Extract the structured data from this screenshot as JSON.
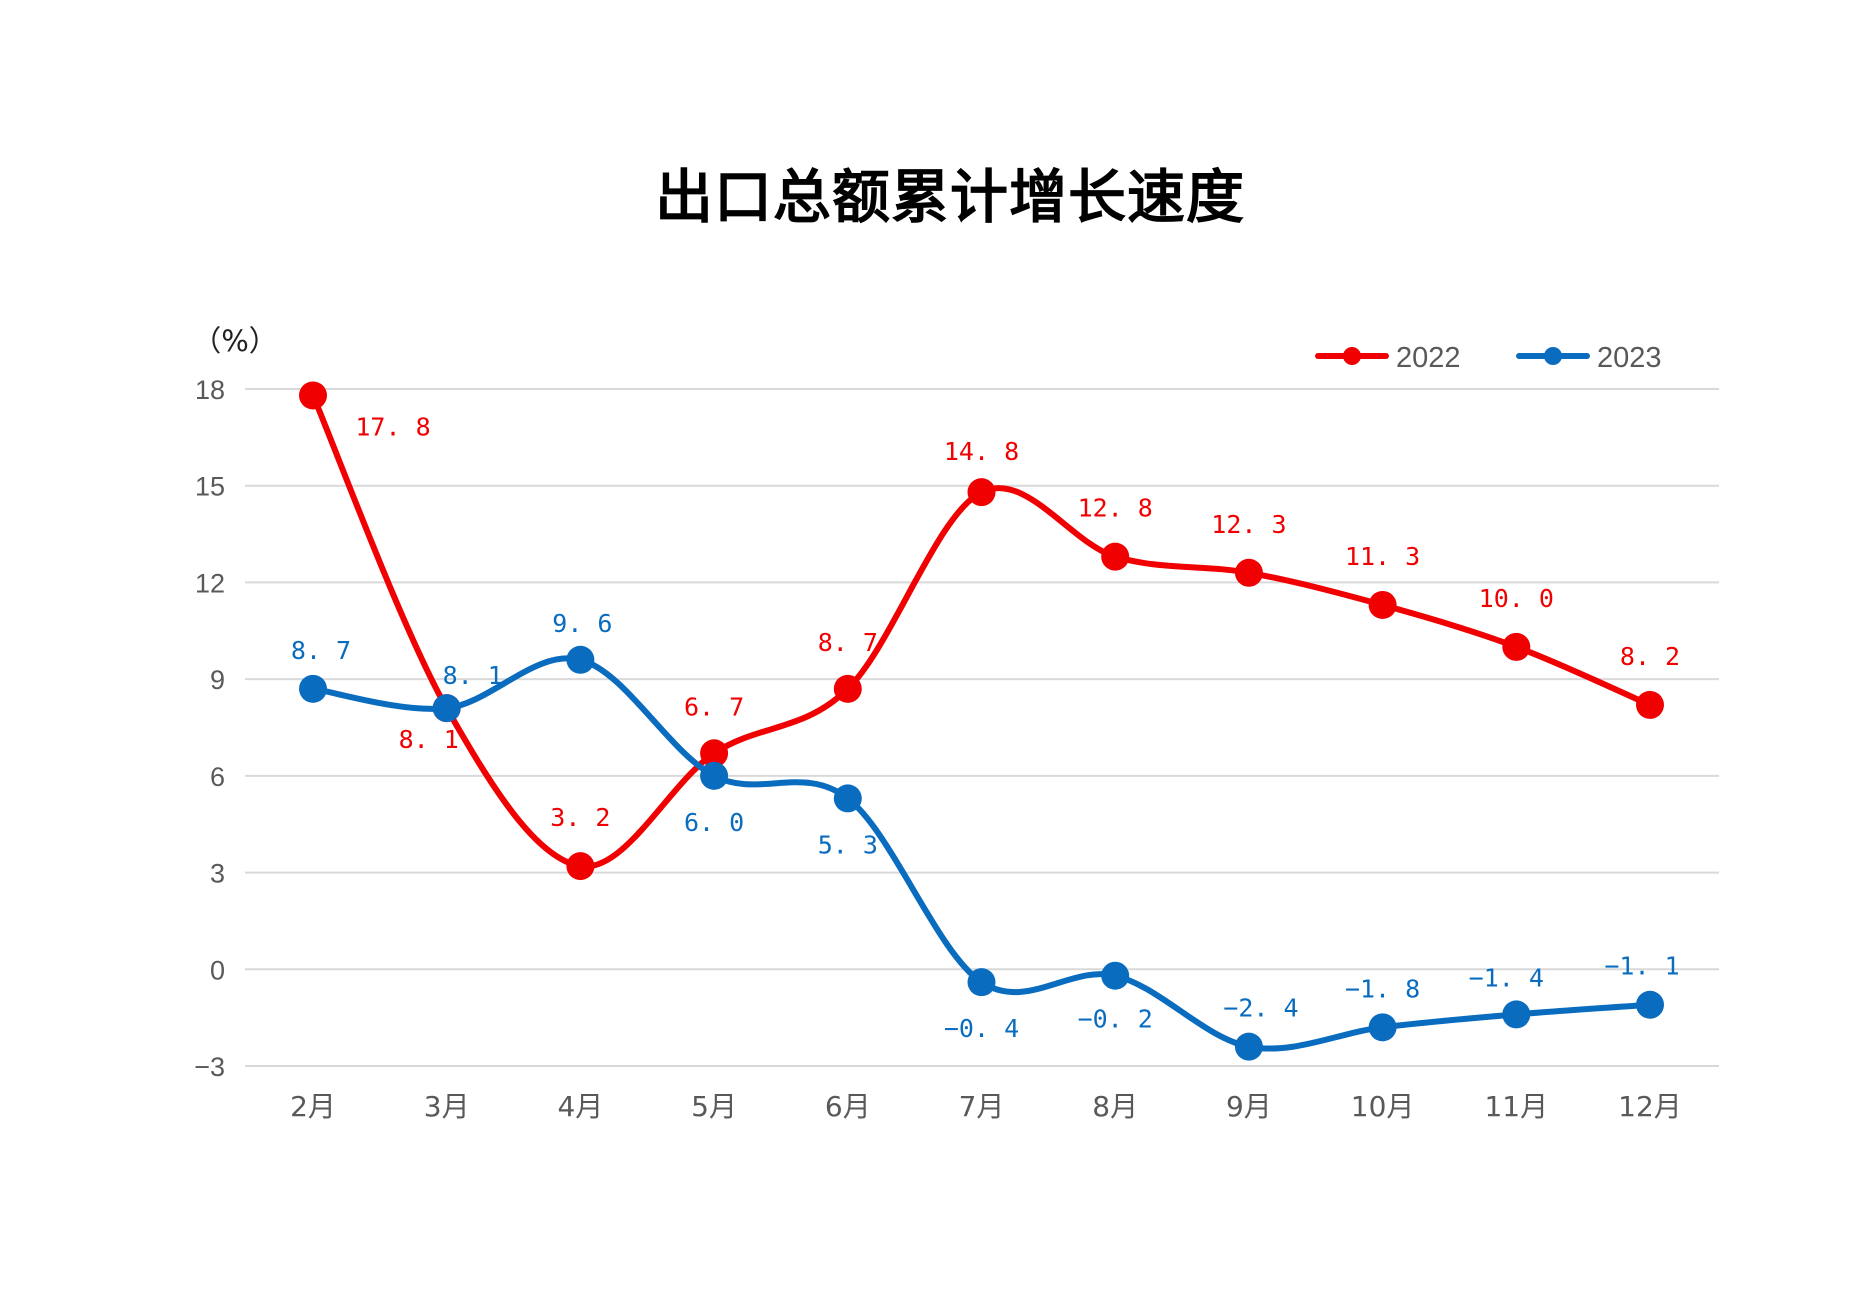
{
  "chart_data": {
    "type": "line",
    "title": "出口总额累计增长速度",
    "ylabel": "（%）",
    "xlabel": "",
    "categories": [
      "2月",
      "3月",
      "4月",
      "5月",
      "6月",
      "7月",
      "8月",
      "9月",
      "10月",
      "11月",
      "12月"
    ],
    "ylim": [
      -3,
      18
    ],
    "yticks": [
      -3,
      0,
      3,
      6,
      9,
      12,
      15,
      18
    ],
    "grid": true,
    "smooth": true,
    "legend_position": "top-right",
    "series": [
      {
        "name": "2022",
        "color": "#f00000",
        "values": [
          17.8,
          8.1,
          3.2,
          6.7,
          8.7,
          14.8,
          12.8,
          12.3,
          11.3,
          10.0,
          8.2
        ],
        "labels": [
          "17.8",
          "8.1",
          "3.2",
          "6.7",
          "8.7",
          "14.8",
          "12.8",
          "12.3",
          "11.3",
          "10.0",
          "8.2"
        ]
      },
      {
        "name": "2023",
        "color": "#0a6cbf",
        "values": [
          8.7,
          8.1,
          9.6,
          6.0,
          5.3,
          -0.4,
          -0.2,
          -2.4,
          -1.8,
          -1.4,
          -1.1
        ],
        "labels": [
          "8.7",
          "8.1",
          "9.6",
          "6.0",
          "5.3",
          "-0.4",
          "-0.2",
          "-2.4",
          "-1.8",
          "-1.4",
          "-1.1"
        ]
      }
    ]
  }
}
